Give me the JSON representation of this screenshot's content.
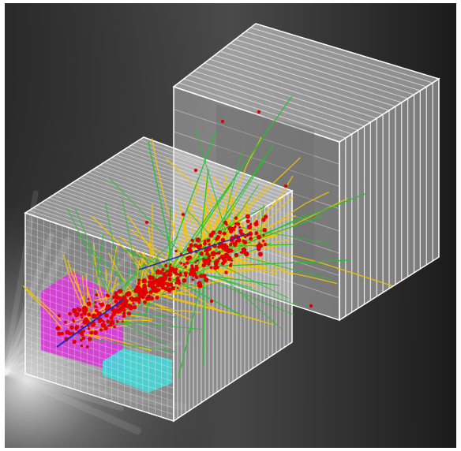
{
  "scene": {
    "background_color": "#1e1e1e",
    "glow_color": "#ffffff",
    "detector_face_color": "#cfcfcf",
    "detector_line_color": "#ffffff",
    "hadron_track_color": "#f5c400",
    "muon_track_color": "#22c22a",
    "hit_color": "#e00000",
    "electron_track_color": "#1a2fbf",
    "calorimeter_a_color": "#d63bd6",
    "calorimeter_b_color": "#47d6d6"
  }
}
